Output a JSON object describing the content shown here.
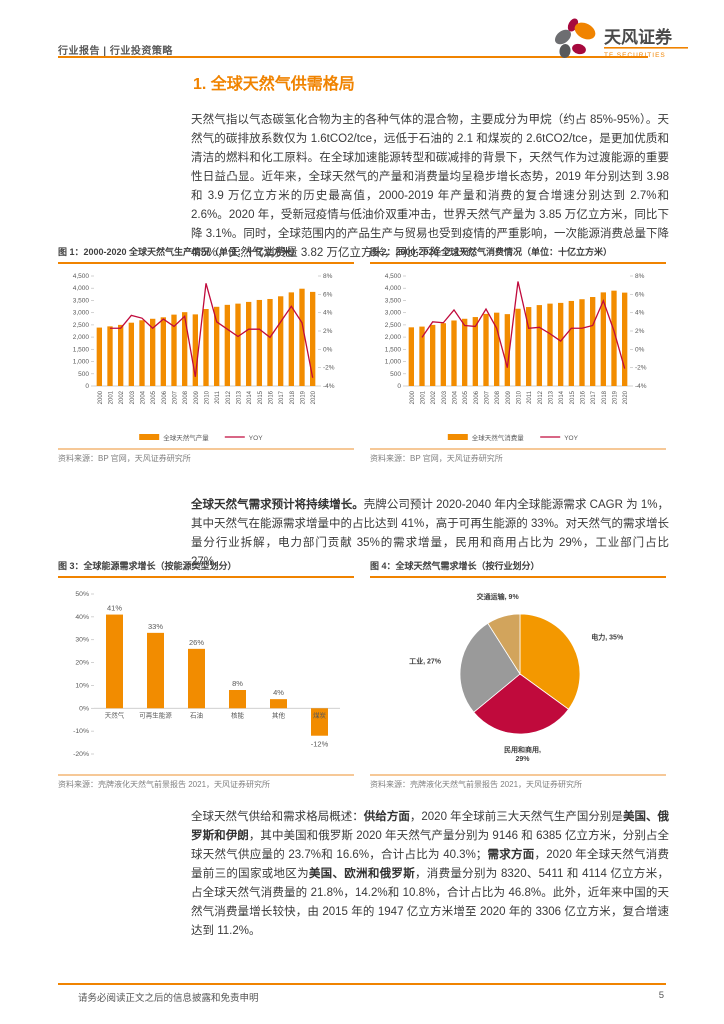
{
  "colors": {
    "accent": "#f08300",
    "bar": "#f28c00",
    "line": "#c00a3c",
    "axis": "#bfbfbf",
    "tick_text": "#595959"
  },
  "header": {
    "breadcrumb": "行业报告 | 行业投资策略",
    "brand_name": "天风证券",
    "brand_sub": "TF SECURITIES"
  },
  "section_title": "1. 全球天然气供需格局",
  "paragraphs": {
    "p1": "天然气指以气态碳氢化合物为主的各种气体的混合物，主要成分为甲烷（约占 85%-95%）。天然气的碳排放系数仅为 1.6tCO2/tce，远低于石油的 2.1 和煤炭的 2.6tCO2/tce，是更加优质和清洁的燃料和化工原料。在全球加速能源转型和碳减排的背景下，天然气作为过渡能源的重要性日益凸显。近年来，全球天然气的产量和消费量均呈稳步增长态势，2019 年分别达到 3.98 和 3.9 万亿立方米的历史最高值，2000-2019 年产量和消费的复合增速分别达到 2.7%和 2.6%。2020 年，受新冠疫情与低油价双重冲击，世界天然气产量为 3.85 万亿立方米，同比下降 3.1%。同时，全球范围内的产品生产与贸易也受到疫情的严重影响，一次能源消费总量下降 4.5%，天然气消费量 3.82 万亿立方米，同比下降 2.1%。",
    "p2": [
      {
        "t": "全球天然气需求预计将持续增长。",
        "b": true
      },
      {
        "t": "壳牌公司预计 2020-2040 年内全球能源需求 CAGR 为 1%，其中天然气在能源需求增量中的占比达到 41%，高于可再生能源的 33%。对天然气的需求增长量分行业拆解，电力部门贡献 35%的需求增量，民用和商用占比为 29%，工业部门占比 27%。"
      }
    ],
    "p3": [
      {
        "t": "全球天然气供给和需求格局概述："
      },
      {
        "t": "供给方面",
        "b": true
      },
      {
        "t": "，2020 年全球前三大天然气生产国分别是"
      },
      {
        "t": "美国、俄罗斯和伊朗",
        "b": true
      },
      {
        "t": "，其中美国和俄罗斯 2020 年天然气产量分别为 9146 和 6385 亿立方米，分别占全球天然气供应量的 23.7%和 16.6%，合计占比为 40.3%；"
      },
      {
        "t": "需求方面",
        "b": true
      },
      {
        "t": "，2020 年全球天然气消费量前三的国家或地区为"
      },
      {
        "t": "美国、欧洲和俄罗斯",
        "b": true
      },
      {
        "t": "，消费量分别为 8320、5411 和 4114 亿立方米，占全球天然气消费量的 21.8%，14.2%和 10.8%，合计占比为 46.8%。此外，近年来中国的天然气消费量增长较快，由 2015 年的 1947 亿立方米增至 2020 年的 3306 亿立方米，复合增速达到 11.2%。"
      }
    ]
  },
  "chart_data": [
    {
      "type": "bar+line",
      "title": "图 1：2000-2020 全球天然气生产情况（单位：十亿立方米）",
      "categories": [
        "2000",
        "2001",
        "2002",
        "2003",
        "2004",
        "2005",
        "2006",
        "2007",
        "2008",
        "2009",
        "2010",
        "2011",
        "2012",
        "2013",
        "2014",
        "2015",
        "2016",
        "2017",
        "2018",
        "2019",
        "2020"
      ],
      "bar_series": {
        "name": "全球天然气产量",
        "values": [
          2390,
          2440,
          2500,
          2590,
          2690,
          2750,
          2810,
          2920,
          3020,
          2930,
          3150,
          3240,
          3320,
          3370,
          3440,
          3520,
          3560,
          3670,
          3830,
          3980,
          3850
        ]
      },
      "line_series": {
        "name": "YOY",
        "values": [
          null,
          2.3,
          2.3,
          3.7,
          3.4,
          2.3,
          3.3,
          2.5,
          3.6,
          -3.0,
          7.2,
          3.0,
          2.2,
          1.4,
          2.2,
          2.2,
          1.3,
          3.0,
          4.7,
          2.9,
          -3.1
        ]
      },
      "y_left": {
        "min": 0,
        "max": 4500,
        "step": 500
      },
      "y_right": {
        "min": -4,
        "max": 8,
        "step": 2,
        "suffix": "%"
      },
      "source": "资料来源：BP 官网，天风证券研究所"
    },
    {
      "type": "bar+line",
      "title": "图 2：2000-2020 全球天然气消费情况（单位：十亿立方米）",
      "categories": [
        "2000",
        "2001",
        "2002",
        "2003",
        "2004",
        "2005",
        "2006",
        "2007",
        "2008",
        "2009",
        "2010",
        "2011",
        "2012",
        "2013",
        "2014",
        "2015",
        "2016",
        "2017",
        "2018",
        "2019",
        "2020"
      ],
      "bar_series": {
        "name": "全球天然气消费量",
        "values": [
          2400,
          2430,
          2500,
          2570,
          2680,
          2750,
          2820,
          2950,
          3000,
          2940,
          3160,
          3230,
          3310,
          3370,
          3400,
          3480,
          3550,
          3640,
          3830,
          3900,
          3820
        ]
      },
      "line_series": {
        "name": "YOY",
        "values": [
          null,
          1.3,
          3.0,
          2.9,
          4.3,
          2.6,
          2.5,
          4.4,
          2.3,
          -2.0,
          7.4,
          2.3,
          2.4,
          1.7,
          0.9,
          2.3,
          2.3,
          2.6,
          5.3,
          2.0,
          -2.1
        ]
      },
      "y_left": {
        "min": 0,
        "max": 4500,
        "step": 500
      },
      "y_right": {
        "min": -4,
        "max": 8,
        "step": 2,
        "suffix": "%"
      },
      "source": "资料来源：BP 官网，天风证券研究所"
    },
    {
      "type": "bar",
      "title": "图 3：全球能源需求增长（按能源类型划分）",
      "categories": [
        "天然气",
        "可再生能源",
        "石油",
        "核能",
        "其他",
        "煤炭"
      ],
      "values": [
        41,
        33,
        26,
        8,
        4,
        -12
      ],
      "labels": [
        "41%",
        "33%",
        "26%",
        "8%",
        "4%",
        "-12%"
      ],
      "y": {
        "min": -20,
        "max": 50,
        "step": 10,
        "suffix": "%"
      },
      "source": "资料来源：壳牌液化天然气前景报告 2021，天风证券研究所"
    },
    {
      "type": "pie",
      "title": "图 4：全球天然气需求增长（按行业划分）",
      "slices": [
        {
          "label": "电力",
          "value": 35,
          "display": "电力, 35%",
          "color": "#f39800"
        },
        {
          "label": "民用和商用",
          "value": 29,
          "lines": [
            "民用和商用,",
            "29%"
          ],
          "color": "#c00a3c"
        },
        {
          "label": "工业",
          "value": 27,
          "display": "工业, 27%",
          "color": "#9a9a9a"
        },
        {
          "label": "交通运输",
          "value": 9,
          "display": "交通运输, 9%",
          "color": "#d2a45c"
        }
      ],
      "source": "资料来源：壳牌液化天然气前景报告 2021，天风证券研究所"
    }
  ],
  "footer": {
    "disclaimer": "请务必阅读正文之后的信息披露和免责申明",
    "page": "5"
  }
}
